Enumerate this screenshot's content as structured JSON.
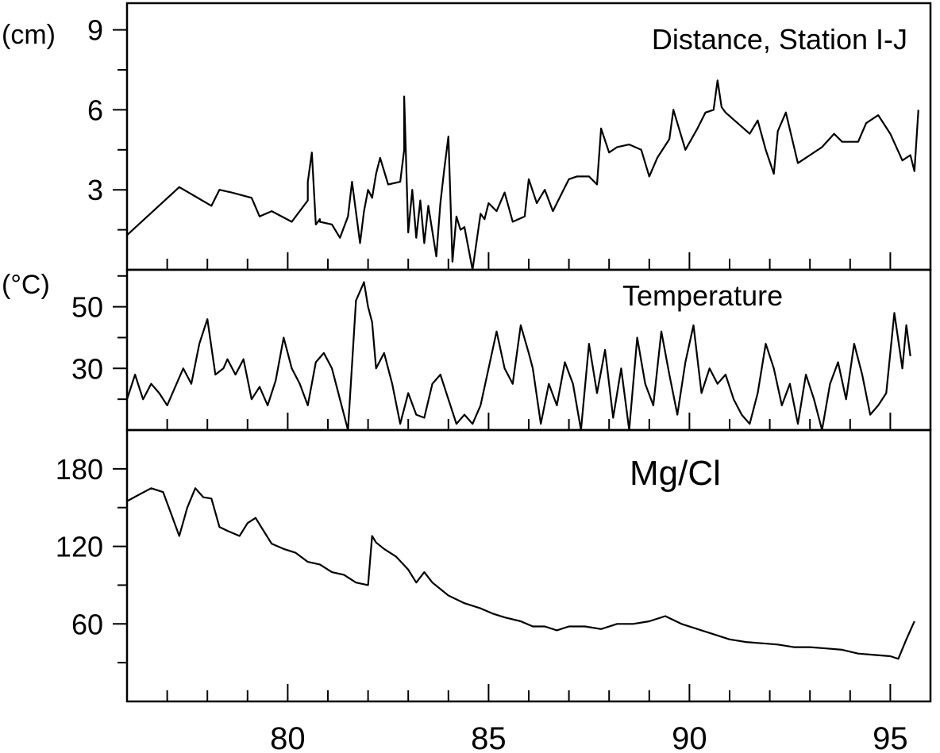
{
  "chart_data": [
    {
      "type": "line",
      "title": "Distance, Station I-J",
      "unit": "(cm)",
      "ylim": [
        0,
        10
      ],
      "yticks": [
        3,
        6,
        9
      ],
      "xlim": [
        76,
        96
      ],
      "series": [
        {
          "x": [
            76.0,
            77.3,
            78.1,
            78.3,
            78.6,
            79.1,
            79.3,
            79.6,
            80.1,
            80.5,
            80.5,
            80.6,
            80.7,
            80.8,
            80.8,
            81.1,
            81.3,
            81.5,
            81.6,
            81.8,
            81.9,
            82.0,
            82.1,
            82.2,
            82.3,
            82.5,
            82.8,
            82.9,
            82.9,
            83.0,
            83.1,
            83.2,
            83.3,
            83.4,
            83.5,
            83.7,
            83.8,
            83.9,
            84.0,
            84.1,
            84.2,
            84.3,
            84.4,
            84.6,
            84.8,
            84.9,
            85.0,
            85.2,
            85.4,
            85.6,
            85.9,
            86.0,
            86.2,
            86.4,
            86.6,
            86.8,
            87.0,
            87.2,
            87.5,
            87.7,
            87.8,
            88.0,
            88.2,
            88.5,
            88.8,
            89.0,
            89.2,
            89.5,
            89.6,
            89.9,
            90.2,
            90.4,
            90.6,
            90.7,
            90.8,
            90.9,
            91.2,
            91.5,
            91.7,
            91.9,
            92.1,
            92.2,
            92.4,
            92.7,
            93.0,
            93.3,
            93.6,
            93.8,
            94.2,
            94.4,
            94.7,
            95.0,
            95.3,
            95.5,
            95.6,
            95.7
          ],
          "values": [
            1.3,
            3.1,
            2.4,
            3.0,
            2.9,
            2.7,
            2.0,
            2.2,
            1.8,
            2.6,
            3.3,
            4.4,
            1.7,
            1.9,
            1.8,
            1.7,
            1.2,
            2.0,
            3.3,
            1.0,
            2.2,
            3.0,
            2.7,
            3.6,
            4.2,
            3.2,
            3.3,
            4.5,
            6.5,
            1.4,
            3.0,
            1.2,
            2.6,
            1.0,
            2.4,
            0.5,
            2.5,
            3.8,
            5.0,
            0.3,
            2.0,
            1.5,
            1.6,
            0.0,
            2.1,
            1.9,
            2.5,
            2.2,
            2.9,
            1.8,
            2.0,
            3.4,
            2.5,
            3.0,
            2.2,
            2.8,
            3.4,
            3.5,
            3.5,
            3.2,
            5.3,
            4.4,
            4.6,
            4.7,
            4.5,
            3.5,
            4.2,
            4.9,
            6.0,
            4.5,
            5.3,
            5.9,
            6.0,
            7.1,
            6.1,
            5.9,
            5.5,
            5.1,
            5.6,
            4.5,
            3.6,
            5.2,
            5.9,
            4.0,
            4.3,
            4.6,
            5.1,
            4.8,
            4.8,
            5.5,
            5.8,
            5.1,
            4.1,
            4.3,
            3.7,
            6.0
          ]
        }
      ]
    },
    {
      "type": "line",
      "title": "Temperature",
      "unit": "(°C)",
      "ylim": [
        10,
        62
      ],
      "yticks": [
        30,
        50
      ],
      "xlim": [
        76,
        96
      ],
      "series": [
        {
          "x": [
            76.0,
            76.2,
            76.4,
            76.6,
            76.8,
            77.0,
            77.2,
            77.4,
            77.6,
            77.8,
            78.0,
            78.2,
            78.4,
            78.5,
            78.7,
            78.9,
            79.1,
            79.3,
            79.5,
            79.7,
            79.9,
            80.1,
            80.3,
            80.5,
            80.7,
            80.9,
            81.1,
            81.3,
            81.5,
            81.7,
            81.9,
            82.0,
            82.1,
            82.2,
            82.4,
            82.6,
            82.8,
            83.0,
            83.2,
            83.4,
            83.6,
            83.8,
            84.0,
            84.2,
            84.4,
            84.6,
            84.8,
            85.0,
            85.2,
            85.4,
            85.6,
            85.8,
            86.0,
            86.1,
            86.3,
            86.5,
            86.7,
            86.9,
            87.1,
            87.3,
            87.5,
            87.7,
            87.9,
            88.1,
            88.3,
            88.5,
            88.7,
            88.9,
            89.1,
            89.3,
            89.5,
            89.7,
            89.9,
            90.1,
            90.3,
            90.5,
            90.7,
            90.9,
            91.1,
            91.3,
            91.5,
            91.7,
            91.9,
            92.1,
            92.3,
            92.5,
            92.7,
            92.9,
            93.1,
            93.3,
            93.5,
            93.7,
            93.9,
            94.1,
            94.3,
            94.5,
            94.7,
            94.9,
            95.1,
            95.3,
            95.4,
            95.5
          ],
          "values": [
            20,
            28,
            20,
            25,
            22,
            18,
            24,
            30,
            25,
            38,
            46,
            28,
            30,
            33,
            28,
            33,
            20,
            24,
            18,
            26,
            40,
            30,
            25,
            18,
            32,
            35,
            30,
            20,
            10,
            52,
            58,
            50,
            45,
            30,
            35,
            25,
            12,
            22,
            15,
            14,
            25,
            28,
            20,
            12,
            15,
            12,
            18,
            30,
            42,
            30,
            25,
            44,
            35,
            30,
            12,
            25,
            18,
            32,
            25,
            10,
            38,
            22,
            36,
            14,
            30,
            10,
            40,
            25,
            18,
            42,
            28,
            15,
            32,
            44,
            22,
            30,
            25,
            28,
            20,
            15,
            12,
            22,
            38,
            30,
            18,
            25,
            12,
            28,
            20,
            10,
            25,
            32,
            20,
            38,
            28,
            15,
            18,
            22,
            48,
            30,
            44,
            34
          ]
        }
      ]
    },
    {
      "type": "line",
      "title": "Mg/Cl",
      "ylim": [
        0,
        210
      ],
      "yticks": [
        60,
        120,
        180
      ],
      "xlim": [
        76,
        96
      ],
      "xticks": [
        80,
        85,
        90,
        95
      ],
      "series": [
        {
          "x": [
            76.0,
            76.3,
            76.6,
            76.9,
            77.1,
            77.3,
            77.5,
            77.7,
            77.9,
            78.1,
            78.3,
            78.5,
            78.8,
            79.0,
            79.2,
            79.4,
            79.6,
            79.9,
            80.2,
            80.5,
            80.8,
            81.1,
            81.4,
            81.7,
            82.0,
            82.1,
            82.2,
            82.4,
            82.7,
            83.0,
            83.2,
            83.4,
            83.6,
            84.0,
            84.4,
            84.8,
            85.1,
            85.4,
            85.8,
            86.1,
            86.4,
            86.7,
            87.0,
            87.4,
            87.8,
            88.2,
            88.6,
            89.0,
            89.4,
            89.8,
            90.2,
            90.6,
            91.0,
            91.4,
            91.8,
            92.2,
            92.6,
            93.0,
            93.4,
            93.8,
            94.2,
            94.6,
            95.0,
            95.2,
            95.4,
            95.6
          ],
          "values": [
            155,
            160,
            165,
            162,
            145,
            128,
            150,
            165,
            158,
            157,
            135,
            132,
            128,
            138,
            142,
            132,
            122,
            118,
            115,
            108,
            106,
            100,
            98,
            92,
            90,
            128,
            123,
            118,
            112,
            102,
            92,
            100,
            92,
            82,
            76,
            72,
            68,
            65,
            62,
            58,
            58,
            55,
            58,
            58,
            56,
            60,
            60,
            62,
            66,
            60,
            56,
            52,
            48,
            46,
            45,
            44,
            42,
            42,
            41,
            40,
            37,
            36,
            35,
            33,
            48,
            62
          ]
        }
      ]
    }
  ]
}
